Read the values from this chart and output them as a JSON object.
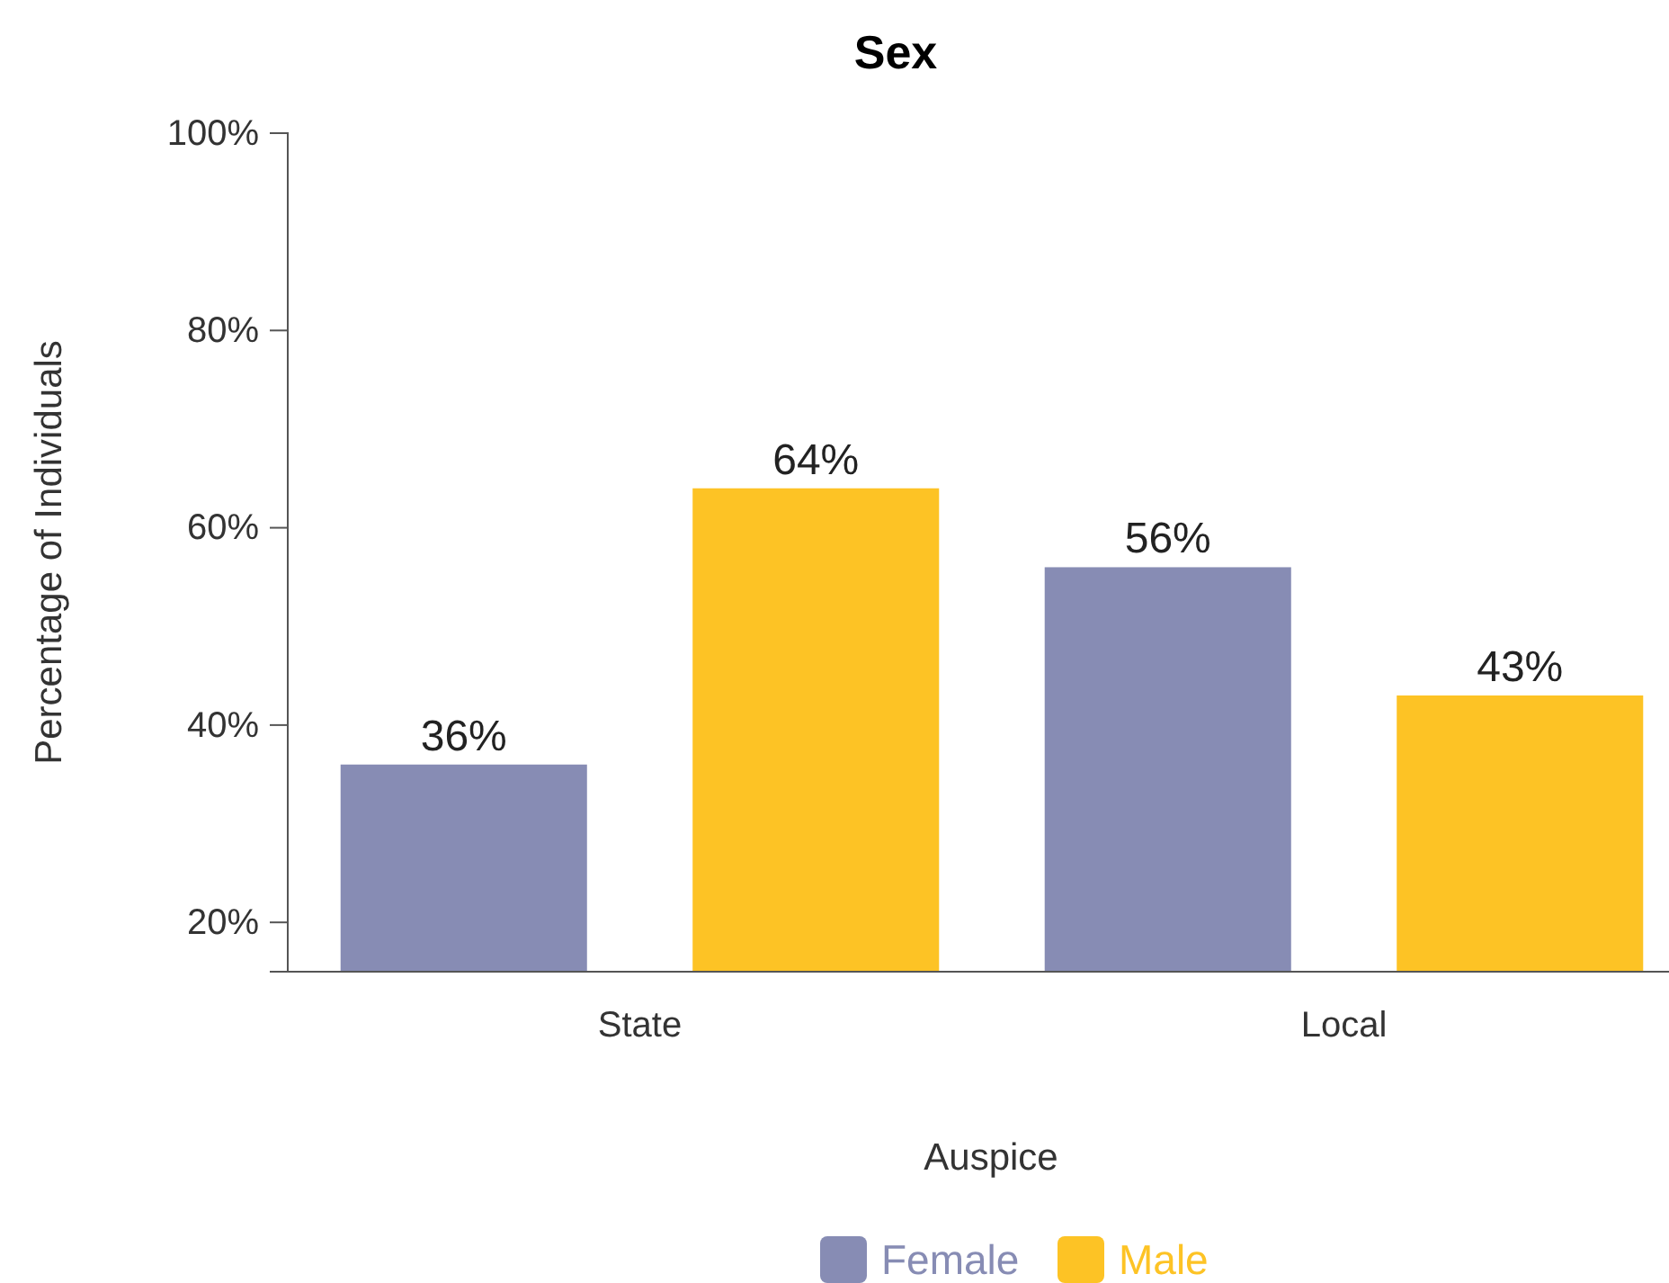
{
  "chart_data": {
    "type": "bar",
    "title": "Sex",
    "xlabel": "Auspice",
    "ylabel": "Percentage of Individuals",
    "categories": [
      "State",
      "Local"
    ],
    "series": [
      {
        "name": "Female",
        "color": "#878cb4",
        "values": [
          36,
          56
        ],
        "value_labels": [
          "36%",
          "56%"
        ]
      },
      {
        "name": "Male",
        "color": "#fdc325",
        "values": [
          64,
          43
        ],
        "value_labels": [
          "64%",
          "43%"
        ]
      }
    ],
    "ylim": [
      15,
      100
    ],
    "yticks": [
      {
        "value": 20,
        "label": "20%"
      },
      {
        "value": 40,
        "label": "40%"
      },
      {
        "value": 60,
        "label": "60%"
      },
      {
        "value": 80,
        "label": "80%"
      },
      {
        "value": 100,
        "label": "100%"
      }
    ],
    "grid": false,
    "legend": "bottom"
  }
}
